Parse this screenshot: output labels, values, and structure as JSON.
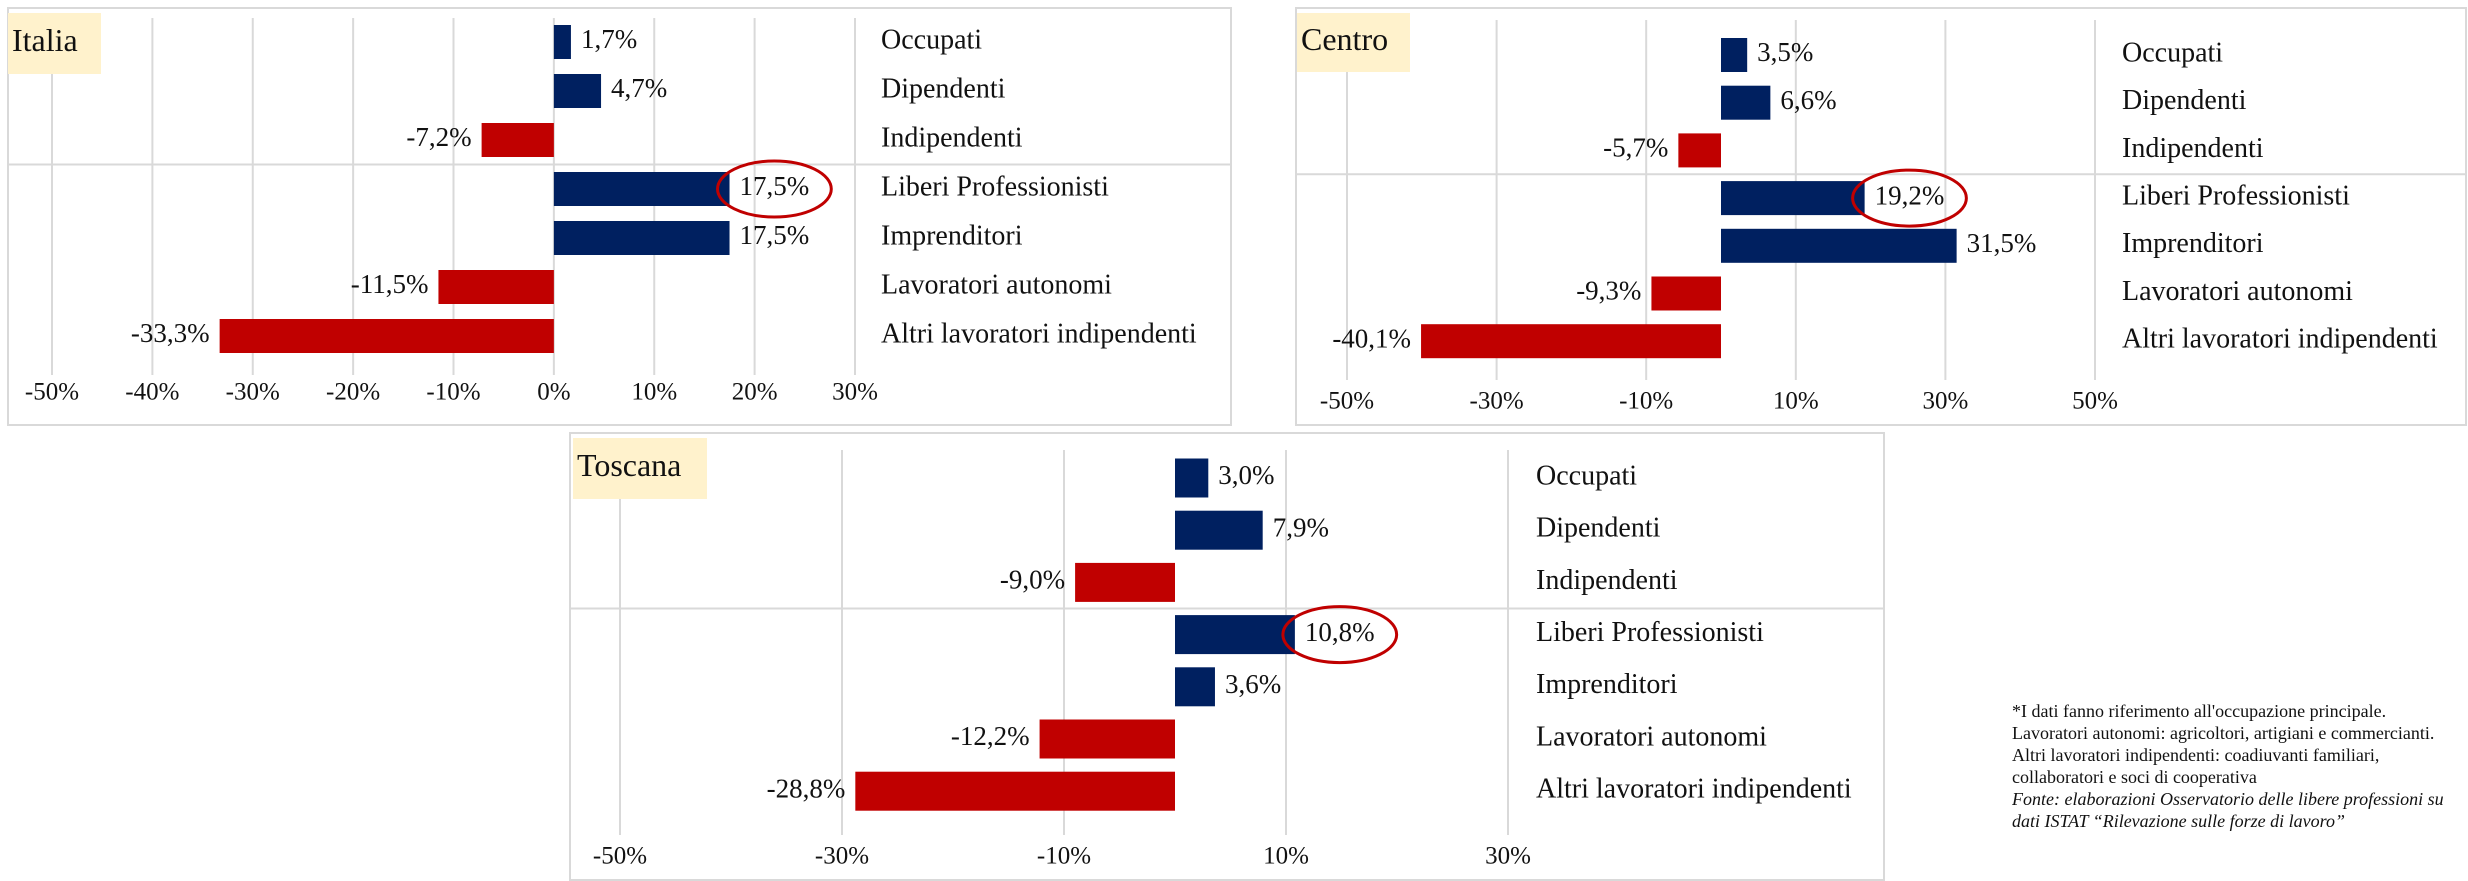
{
  "chart_data": [
    {
      "type": "bar",
      "orientation": "horizontal",
      "title": "Italia",
      "categories": [
        "Occupati",
        "Dipendenti",
        "Indipendenti",
        "Liberi Professionisti",
        "Imprenditori",
        "Lavoratori autonomi",
        "Altri lavoratori indipendenti"
      ],
      "values": [
        1.7,
        4.7,
        -7.2,
        17.5,
        17.5,
        -11.5,
        -33.3
      ],
      "value_labels": [
        "1,7%",
        "4,7%",
        "-7,2%",
        "17,5%",
        "17,5%",
        "-11,5%",
        "-33,3%"
      ],
      "positive_color": "#002060",
      "negative_color": "#c00000",
      "highlight": "Liberi Professionisti",
      "xlim": [
        -50,
        30
      ],
      "xticks": [
        {
          "value": -50,
          "label": "-50%"
        },
        {
          "value": -40,
          "label": "-40%"
        },
        {
          "value": -30,
          "label": "-30%"
        },
        {
          "value": -20,
          "label": "-20%"
        },
        {
          "value": -10,
          "label": "-10%"
        },
        {
          "value": 0,
          "label": "0%"
        },
        {
          "value": 10,
          "label": "10%"
        },
        {
          "value": 20,
          "label": "20%"
        },
        {
          "value": 30,
          "label": "30%"
        }
      ],
      "grid": true
    },
    {
      "type": "bar",
      "orientation": "horizontal",
      "title": "Centro",
      "categories": [
        "Occupati",
        "Dipendenti",
        "Indipendenti",
        "Liberi Professionisti",
        "Imprenditori",
        "Lavoratori autonomi",
        "Altri lavoratori indipendenti"
      ],
      "values": [
        3.5,
        6.6,
        -5.7,
        19.2,
        31.5,
        -9.3,
        -40.1
      ],
      "value_labels": [
        "3,5%",
        "6,6%",
        "-5,7%",
        "19,2%",
        "31,5%",
        "-9,3%",
        "-40,1%"
      ],
      "positive_color": "#002060",
      "negative_color": "#c00000",
      "highlight": "Liberi Professionisti",
      "xlim": [
        -50,
        50
      ],
      "xticks": [
        {
          "value": -50,
          "label": "-50%"
        },
        {
          "value": -30,
          "label": "-30%"
        },
        {
          "value": -10,
          "label": "-10%"
        },
        {
          "value": 10,
          "label": "10%"
        },
        {
          "value": 30,
          "label": "30%"
        },
        {
          "value": 50,
          "label": "50%"
        }
      ],
      "grid": true
    },
    {
      "type": "bar",
      "orientation": "horizontal",
      "title": "Toscana",
      "categories": [
        "Occupati",
        "Dipendenti",
        "Indipendenti",
        "Liberi Professionisti",
        "Imprenditori",
        "Lavoratori autonomi",
        "Altri lavoratori indipendenti"
      ],
      "values": [
        3.0,
        7.9,
        -9.0,
        10.8,
        3.6,
        -12.2,
        -28.8
      ],
      "value_labels": [
        "3,0%",
        "7,9%",
        "-9,0%",
        "10,8%",
        "3,6%",
        "-12,2%",
        "-28,8%"
      ],
      "positive_color": "#002060",
      "negative_color": "#c00000",
      "highlight": "Liberi Professionisti",
      "xlim": [
        -50,
        30
      ],
      "xticks": [
        {
          "value": -50,
          "label": "-50%"
        },
        {
          "value": -30,
          "label": "-30%"
        },
        {
          "value": -10,
          "label": "-10%"
        },
        {
          "value": 10,
          "label": "10%"
        },
        {
          "value": 30,
          "label": "30%"
        }
      ],
      "grid": true
    }
  ],
  "footnote": {
    "note": "*I dati fanno riferimento all'occupazione principale. Lavoratori autonomi: agricoltori, artigiani e commercianti. Altri lavoratori indipendenti: coadiuvanti familiari, collaboratori e soci di cooperativa",
    "source": "Fonte: elaborazioni Osservatorio delle libere professioni su dati ISTAT “Rilevazione sulle forze di lavoro”"
  }
}
